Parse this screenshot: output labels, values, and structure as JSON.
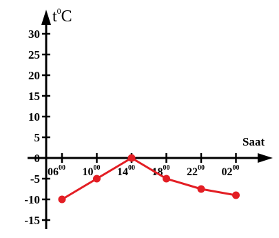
{
  "chart_data": {
    "type": "line",
    "title": "",
    "xlabel": "Saat",
    "ylabel": "t°C",
    "ylabel_parts": {
      "t": "t",
      "sup": "0",
      "unit": "C"
    },
    "x": [
      "06",
      "10",
      "14",
      "18",
      "22",
      "02"
    ],
    "x_sup": "00",
    "yticks": [
      30,
      25,
      20,
      15,
      10,
      5,
      0,
      -5,
      -10,
      -15
    ],
    "ytick_labels": [
      "30",
      "25",
      "20",
      "15",
      "10",
      "5",
      "0",
      "-5",
      "-10",
      "-15"
    ],
    "ylim": [
      -15,
      30
    ],
    "series": [
      {
        "values": [
          -10,
          -5,
          0,
          -5,
          -7.5,
          -9
        ],
        "color": "#e31e24"
      }
    ],
    "grid": false,
    "legend": "none"
  },
  "colors": {
    "axis": "#000000",
    "series": "#e31e24"
  }
}
